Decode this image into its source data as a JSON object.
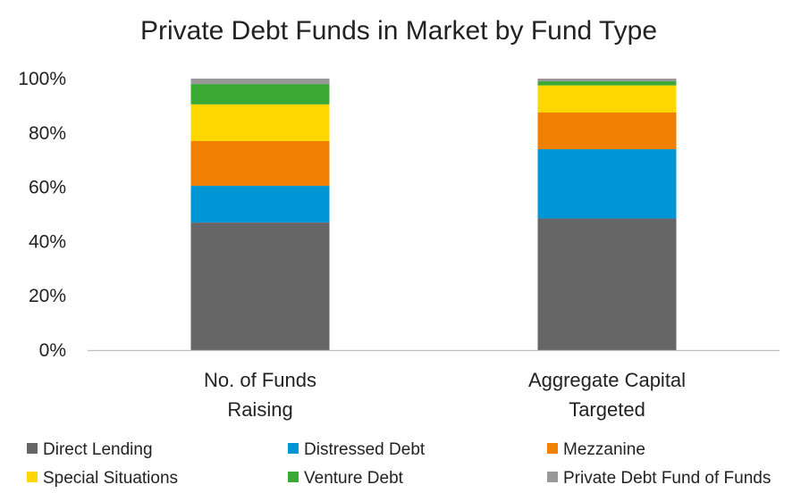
{
  "chart_data": {
    "type": "bar",
    "stacked": true,
    "title": "Private Debt Funds in Market by Fund Type",
    "categories": [
      [
        "No. of Funds",
        "Raising"
      ],
      [
        "Aggregate Capital",
        "Targeted"
      ]
    ],
    "ylim": [
      0,
      100
    ],
    "yticks": [
      "0%",
      "20%",
      "40%",
      "60%",
      "80%",
      "100%"
    ],
    "ytick_values": [
      0,
      20,
      40,
      60,
      80,
      100
    ],
    "grid": false,
    "legend_position": "bottom",
    "series": [
      {
        "name": "Direct Lending",
        "color": "#666666",
        "values": [
          47,
          48.5
        ]
      },
      {
        "name": "Distressed Debt",
        "color": "#0096d6",
        "values": [
          13.5,
          25.5
        ]
      },
      {
        "name": "Mezzanine",
        "color": "#f08000",
        "values": [
          16.5,
          13.5
        ]
      },
      {
        "name": "Special Situations",
        "color": "#ffd700",
        "values": [
          13.5,
          10
        ]
      },
      {
        "name": "Venture Debt",
        "color": "#3aaa35",
        "values": [
          7.5,
          1.5
        ]
      },
      {
        "name": "Private Debt Fund of Funds",
        "color": "#999999",
        "values": [
          2,
          1
        ]
      }
    ]
  }
}
